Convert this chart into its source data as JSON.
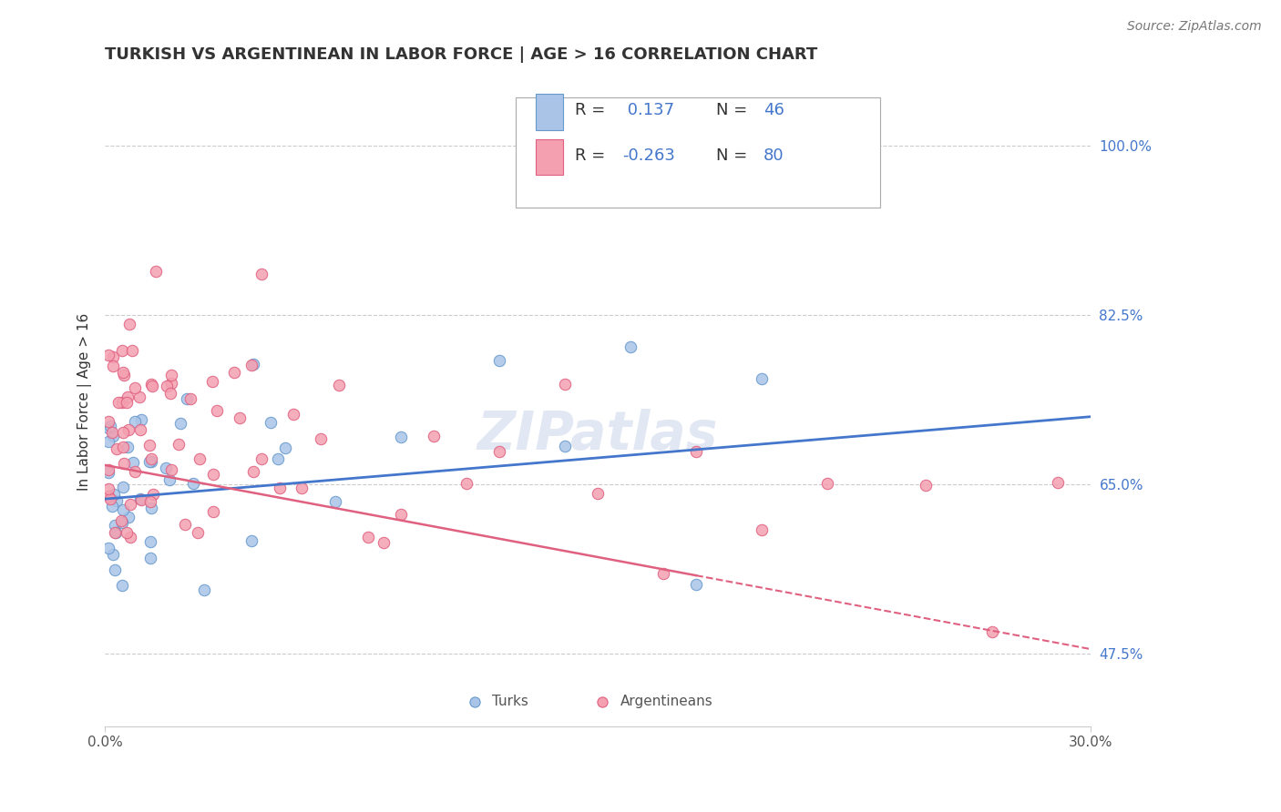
{
  "title": "TURKISH VS ARGENTINEAN IN LABOR FORCE | AGE > 16 CORRELATION CHART",
  "source": "Source: ZipAtlas.com",
  "ylabel": "In Labor Force | Age > 16",
  "xlim": [
    0.0,
    30.0
  ],
  "ylim": [
    40.0,
    107.0
  ],
  "xticks": [
    0.0,
    30.0
  ],
  "xticklabels": [
    "0.0%",
    "30.0%"
  ],
  "yticks": [
    47.5,
    65.0,
    82.5,
    100.0
  ],
  "yticklabels": [
    "47.5%",
    "65.0%",
    "82.5%",
    "100.0%"
  ],
  "grid_color": "#cccccc",
  "background_color": "#ffffff",
  "turks_color": "#aac4e8",
  "argentineans_color": "#f4a0b0",
  "turks_edge_color": "#6699cc",
  "argentineans_edge_color": "#e06080",
  "blue_line_color": "#4477cc",
  "pink_line_color": "#e06080",
  "R_turks": "0.137",
  "N_turks": "46",
  "R_argentineans": "-0.263",
  "N_argentineans": "80",
  "watermark": "ZIPatlas",
  "title_fontsize": 13,
  "axis_label_fontsize": 11,
  "tick_fontsize": 11,
  "legend_fontsize": 13,
  "source_fontsize": 10,
  "blue_line_x0": 0,
  "blue_line_x1": 30,
  "blue_line_y0": 63.5,
  "blue_line_y1": 72.0,
  "pink_line_x0": 0,
  "pink_line_solid_x1": 18,
  "pink_line_x1": 30,
  "pink_line_y0": 67.0,
  "pink_line_y1": 48.0,
  "turks_special_x": 22,
  "turks_special_y": 100
}
